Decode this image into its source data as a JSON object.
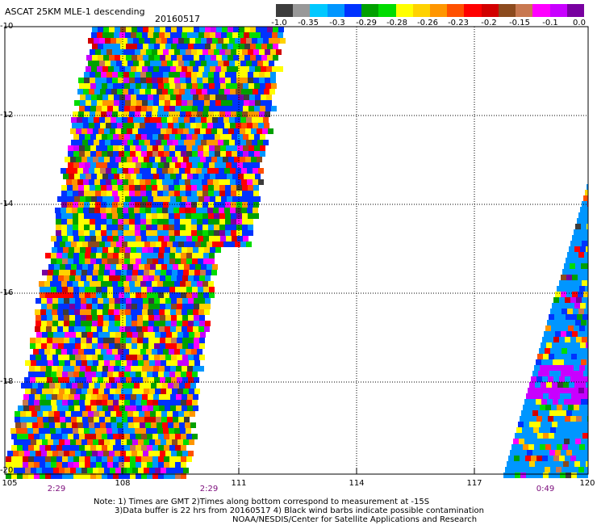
{
  "title": "ASCAT 25KM MLE-1 descending",
  "date": "20160517",
  "colorbar": {
    "colors": [
      "#3c3c3c",
      "#989898",
      "#00c8ff",
      "#0096ff",
      "#0032ff",
      "#00a000",
      "#00dc00",
      "#ffff00",
      "#ffd200",
      "#ff9600",
      "#ff5000",
      "#ff0000",
      "#d20000",
      "#8c4b1e",
      "#c87850",
      "#ff00ff",
      "#c800ff",
      "#7800a0"
    ],
    "tick_labels": [
      "-1.0",
      "-0.35",
      "-0.3",
      "-0.29",
      "-0.28",
      "-0.26",
      "-0.23",
      "-0.2",
      "-0.15",
      "-0.1",
      "0.0"
    ]
  },
  "axes": {
    "lat_labels": [
      "-10",
      "-12",
      "-14",
      "-16",
      "-18",
      "-20"
    ],
    "lon_labels": [
      "105",
      "108",
      "111",
      "114",
      "117",
      "120"
    ],
    "lat_range": [
      -20,
      -10
    ],
    "lon_range": [
      105,
      120
    ],
    "grid": "dotted"
  },
  "pass_times": [
    "2:29",
    "2:29",
    "0:49"
  ],
  "notes": [
    "Note: 1) Times are GMT 2)Times along bottom correspond to measurement at -15S",
    "3)Data buffer is 22 hrs from 20160517 4) Black wind barbs indicate possible contamination",
    "NOAA/NESDIS/Center for Satellite Applications and Research"
  ]
}
